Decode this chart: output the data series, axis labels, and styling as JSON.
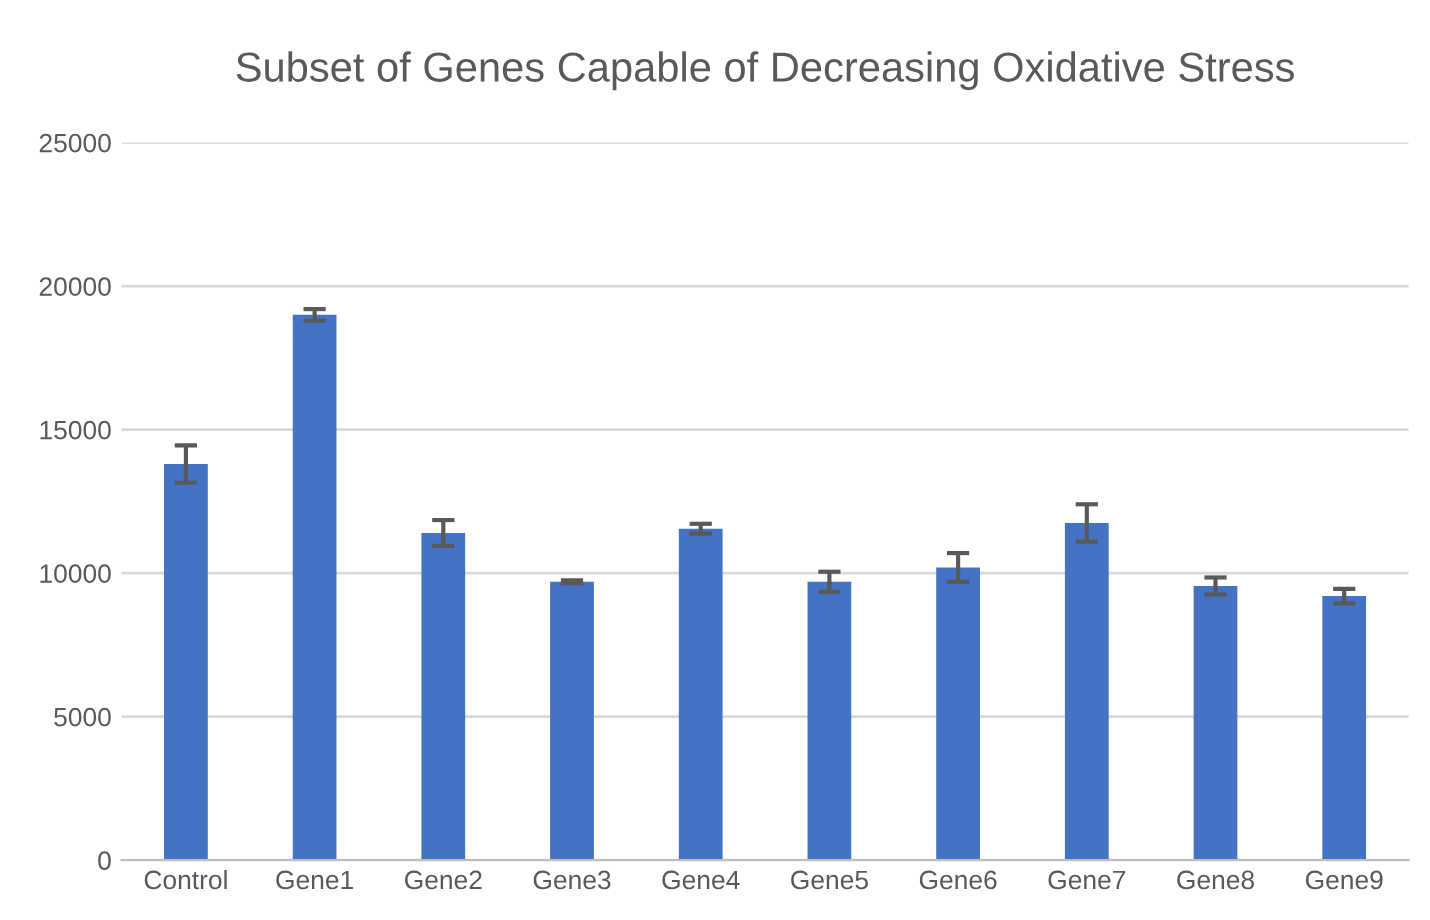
{
  "chart_data": {
    "type": "bar",
    "title": "Subset of Genes Capable of Decreasing Oxidative Stress",
    "categories": [
      "Control",
      "Gene1",
      "Gene2",
      "Gene3",
      "Gene4",
      "Gene5",
      "Gene6",
      "Gene7",
      "Gene8",
      "Gene9"
    ],
    "values": [
      13800,
      19000,
      11400,
      9700,
      11550,
      9700,
      10200,
      11750,
      9550,
      9200
    ],
    "errors": [
      650,
      200,
      450,
      50,
      170,
      350,
      500,
      650,
      300,
      250
    ],
    "color": "#4472c4",
    "ylim": [
      0,
      25000
    ],
    "yticks": [
      0,
      5000,
      10000,
      15000,
      20000,
      25000
    ],
    "grid": "y"
  }
}
